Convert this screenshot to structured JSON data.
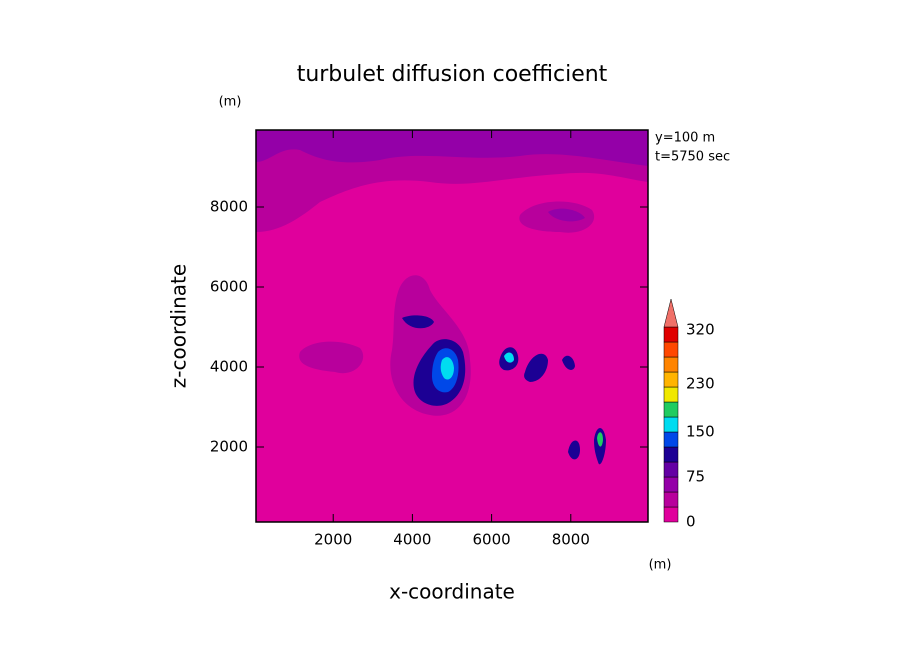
{
  "chart_data": {
    "type": "contour",
    "title": "turbulet diffusion coefficient",
    "xlabel": "x-coordinate",
    "ylabel": "z-coordinate",
    "xunit": "(m)",
    "yunit": "(m)",
    "annotations": [
      "y=100 m",
      "t=5750 sec"
    ],
    "xlim": [
      50,
      9950
    ],
    "xticks": [
      2000,
      4000,
      6000,
      8000
    ],
    "ylim": [
      125,
      9925
    ],
    "yticks": [
      2000,
      4000,
      6000,
      8000
    ],
    "colorbar": {
      "levels": [
        0,
        25,
        50,
        75,
        100,
        125,
        150,
        175,
        200,
        225,
        250,
        275,
        300,
        325
      ],
      "colors": [
        "#e0009c",
        "#b8009c",
        "#9400a8",
        "#6400a4",
        "#1c0094",
        "#0048e8",
        "#00dcf0",
        "#20cc60",
        "#f0e800",
        "#ffb400",
        "#ff8400",
        "#ff4800",
        "#e00000"
      ],
      "extend_color": "#f07068",
      "ticks": [
        0,
        75,
        150,
        230,
        320
      ]
    }
  }
}
